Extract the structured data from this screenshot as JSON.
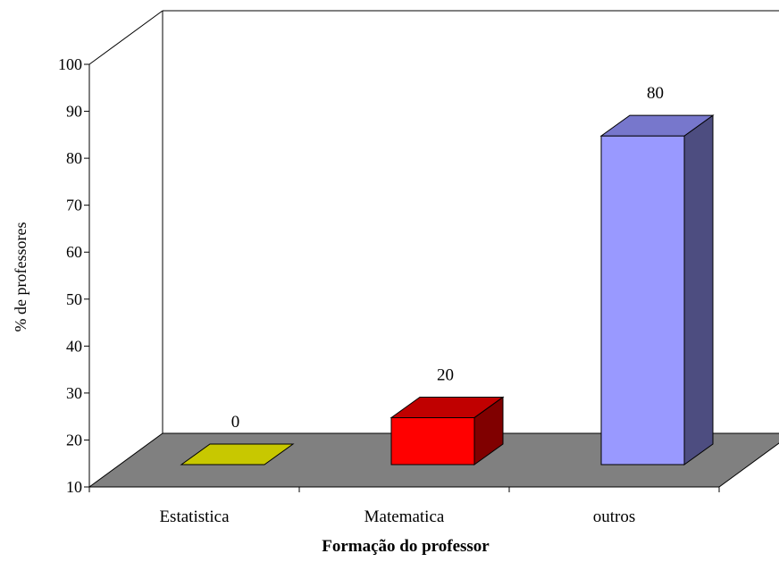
{
  "chart_data": {
    "type": "bar",
    "categories": [
      "Estatistica",
      "Matematica",
      "outros"
    ],
    "values": [
      0,
      20,
      80
    ],
    "data_labels": [
      "0",
      "20",
      "80"
    ],
    "xlabel": "Formação do professor",
    "ylabel": "% de professores",
    "ylim": [
      10,
      100
    ],
    "yticks": [
      10,
      20,
      30,
      40,
      50,
      60,
      70,
      80,
      90,
      100
    ],
    "grid": false,
    "legend": "none",
    "style": "3d",
    "colors": {
      "bars": [
        {
          "front": "#C8C800",
          "top": "#C8C800",
          "side": "#8C8C00"
        },
        {
          "front": "#FF0000",
          "top": "#C00000",
          "side": "#800000"
        },
        {
          "front": "#9999FF",
          "top": "#7777CC",
          "side": "#4D4D80"
        }
      ],
      "floor": "#808080",
      "walls": "#FFFFFF"
    }
  }
}
